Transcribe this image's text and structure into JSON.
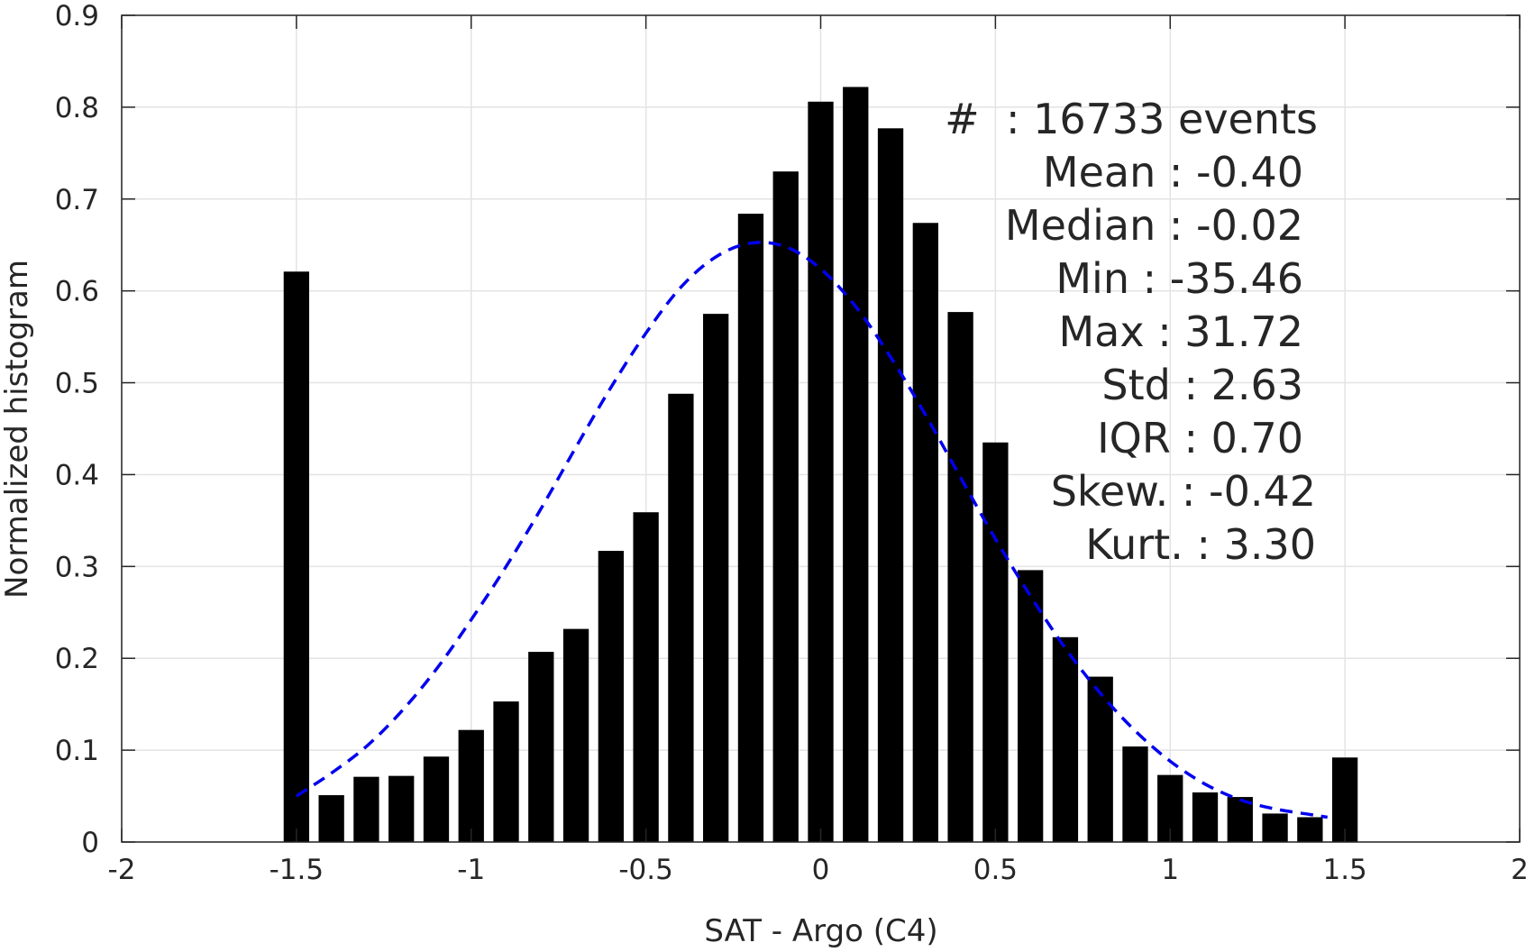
{
  "chart_data": {
    "type": "bar",
    "xlabel": "SAT - Argo (C4)",
    "ylabel": "Normalized histogram",
    "xlim": [
      -2,
      2
    ],
    "ylim": [
      0,
      0.9
    ],
    "xticks": [
      "-2",
      "-1.5",
      "-1",
      "-0.5",
      "0",
      "0.5",
      "1",
      "1.5",
      "2"
    ],
    "yticks": [
      "0",
      "0.1",
      "0.2",
      "0.3",
      "0.4",
      "0.5",
      "0.6",
      "0.7",
      "0.8",
      "0.9"
    ],
    "grid": true,
    "bar_color": "#000000",
    "x": [
      -1.5,
      -1.4,
      -1.3,
      -1.2,
      -1.1,
      -1.0,
      -0.9,
      -0.8,
      -0.7,
      -0.6,
      -0.5,
      -0.4,
      -0.3,
      -0.2,
      -0.1,
      0.0,
      0.1,
      0.2,
      0.3,
      0.4,
      0.5,
      0.6,
      0.7,
      0.8,
      0.9,
      1.0,
      1.1,
      1.2,
      1.3,
      1.4,
      1.5
    ],
    "values": [
      0.621,
      0.051,
      0.071,
      0.072,
      0.093,
      0.122,
      0.153,
      0.207,
      0.232,
      0.317,
      0.359,
      0.488,
      0.575,
      0.684,
      0.73,
      0.806,
      0.822,
      0.777,
      0.674,
      0.577,
      0.435,
      0.296,
      0.223,
      0.18,
      0.104,
      0.073,
      0.054,
      0.049,
      0.031,
      0.027,
      0.092
    ],
    "fit_curve": {
      "style": "dashed",
      "color": "#0000ee",
      "x": [
        -1.5,
        -1.4,
        -1.3,
        -1.2,
        -1.1,
        -1.0,
        -0.9,
        -0.8,
        -0.7,
        -0.6,
        -0.5,
        -0.4,
        -0.3,
        -0.2,
        -0.1,
        0.0,
        0.1,
        0.2,
        0.3,
        0.4,
        0.5,
        0.6,
        0.7,
        0.8,
        0.9,
        1.0,
        1.1,
        1.2,
        1.3,
        1.4,
        1.45
      ],
      "y": [
        0.05,
        0.075,
        0.104,
        0.142,
        0.188,
        0.242,
        0.3,
        0.363,
        0.43,
        0.495,
        0.554,
        0.604,
        0.637,
        0.652,
        0.648,
        0.624,
        0.583,
        0.528,
        0.465,
        0.397,
        0.33,
        0.268,
        0.211,
        0.162,
        0.121,
        0.088,
        0.063,
        0.046,
        0.036,
        0.03,
        0.027
      ]
    },
    "annotations": [
      "#  : 16733 events",
      "Mean : -0.40",
      "Median : -0.02",
      "Min : -35.46",
      "Max : 31.72",
      "Std : 2.63",
      "IQR : 0.70",
      "Skew. : -0.42",
      "Kurt. : 3.30"
    ]
  }
}
